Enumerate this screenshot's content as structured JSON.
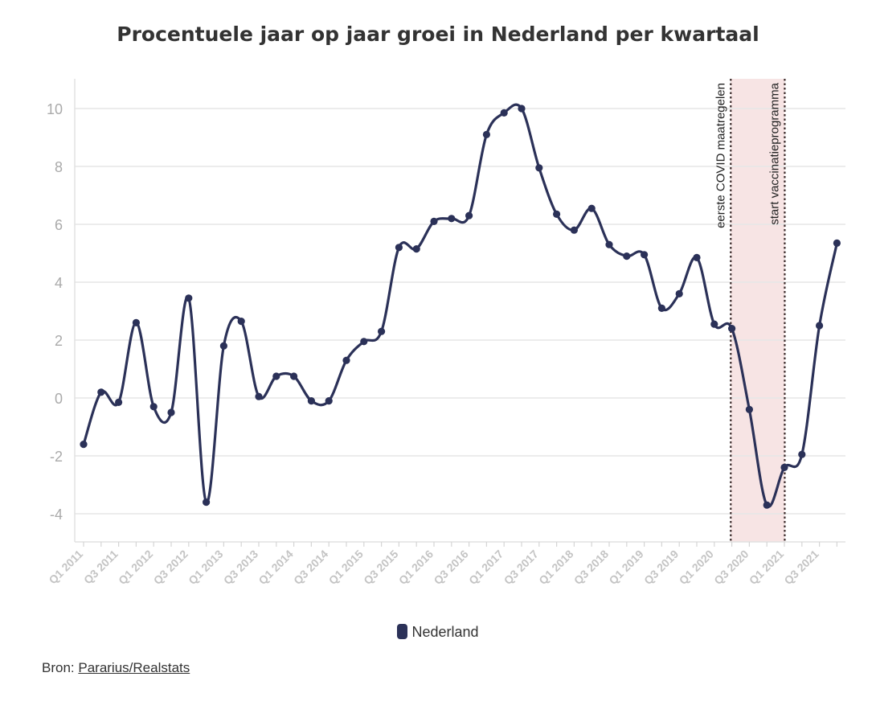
{
  "chart_data": {
    "type": "line",
    "title": "Procentuele jaar op jaar groei in Nederland per kwartaal",
    "xlabel": "",
    "ylabel": "",
    "ylim": [
      -5,
      11
    ],
    "yticks": [
      10,
      8,
      6,
      4,
      2,
      0,
      -2,
      -4
    ],
    "ytick_labels": [
      "10",
      "8",
      "6",
      "4",
      "2",
      "0",
      "-2",
      "-4"
    ],
    "grid": true,
    "legend_position": "bottom-center",
    "x": [
      "Q1 2011",
      "Q2 2011",
      "Q3 2011",
      "Q4 2011",
      "Q1 2012",
      "Q2 2012",
      "Q3 2012",
      "Q4 2012",
      "Q1 2013",
      "Q2 2013",
      "Q3 2013",
      "Q4 2013",
      "Q1 2014",
      "Q2 2014",
      "Q3 2014",
      "Q4 2014",
      "Q1 2015",
      "Q2 2015",
      "Q3 2015",
      "Q4 2015",
      "Q1 2016",
      "Q2 2016",
      "Q3 2016",
      "Q4 2016",
      "Q1 2017",
      "Q2 2017",
      "Q3 2017",
      "Q4 2017",
      "Q1 2018",
      "Q2 2018",
      "Q3 2018",
      "Q4 2018",
      "Q1 2019",
      "Q2 2019",
      "Q3 2019",
      "Q4 2019",
      "Q1 2020",
      "Q2 2020",
      "Q3 2020",
      "Q4 2020",
      "Q1 2021",
      "Q2 2021",
      "Q3 2021",
      "Q4 2021"
    ],
    "xtick_labels": [
      "Q1 2011",
      "Q3 2011",
      "Q1 2012",
      "Q3 2012",
      "Q1 2013",
      "Q3 2013",
      "Q1 2014",
      "Q3 2014",
      "Q1 2015",
      "Q3 2015",
      "Q1 2016",
      "Q3 2016",
      "Q1 2017",
      "Q3 2017",
      "Q1 2018",
      "Q3 2018",
      "Q1 2019",
      "Q3 2019",
      "Q1 2020",
      "Q3 2020",
      "Q1 2021",
      "Q3 2021"
    ],
    "series": [
      {
        "name": "Nederland",
        "color": "#2b3158",
        "values": [
          -1.6,
          0.2,
          -0.15,
          2.6,
          -0.3,
          -0.5,
          3.45,
          -3.6,
          1.8,
          2.65,
          0.05,
          0.75,
          0.75,
          -0.1,
          -0.1,
          1.3,
          1.95,
          2.3,
          5.2,
          5.15,
          6.1,
          6.2,
          6.3,
          9.1,
          9.85,
          10.0,
          7.95,
          6.35,
          5.8,
          6.55,
          5.3,
          4.9,
          4.95,
          3.1,
          3.6,
          4.85,
          2.55,
          2.4,
          -0.4,
          -3.7,
          -2.4,
          -1.95,
          2.5,
          5.35
        ]
      }
    ],
    "annotations": [
      {
        "text": "eerste COVID maatregelen",
        "x": "Q2 2020"
      },
      {
        "text": "start vaccinatieprogramma",
        "x": "Q1 2021"
      }
    ],
    "shaded_band": {
      "from": "Q2 2020",
      "to": "Q1 2021",
      "color": "#f7e4e4"
    }
  },
  "footer": {
    "source_prefix": "Bron: ",
    "source_link": "Pararius/Realstats"
  }
}
